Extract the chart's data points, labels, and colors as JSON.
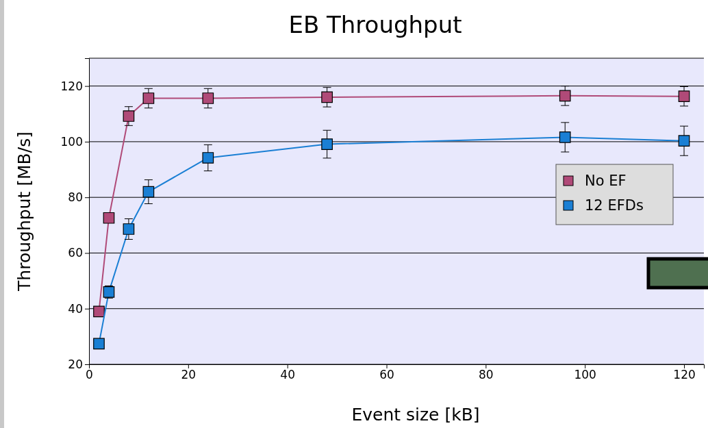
{
  "chart_data": {
    "type": "line",
    "title": "EB Throughput",
    "xlabel": "Event size [kB]",
    "ylabel": "Throughput [MB/s]",
    "xlim": [
      0,
      124
    ],
    "xticks": [
      0,
      20,
      40,
      60,
      80,
      100,
      120
    ],
    "ylim": [
      20,
      130
    ],
    "yticks": [
      20,
      40,
      60,
      80,
      100,
      120
    ],
    "grid": "y",
    "legend": "right",
    "marker": "square",
    "line_style": "solid",
    "series": [
      {
        "name": "No EF",
        "color": "#b04a78",
        "x": [
          2,
          4,
          8,
          12,
          24,
          48,
          96,
          120
        ],
        "values": [
          39,
          72.6,
          109.2,
          115.6,
          115.6,
          116,
          116.5,
          116.3
        ],
        "errors": [
          null,
          1.5,
          3.4,
          3.5,
          3.5,
          3.5,
          3.5,
          3.5
        ]
      },
      {
        "name": "12 EFDs",
        "color": "#1a7fd4",
        "x": [
          2,
          4,
          8,
          12,
          24,
          48,
          96,
          120
        ],
        "values": [
          27.4,
          46,
          68.6,
          82,
          94.2,
          99.1,
          101.6,
          100.3
        ],
        "errors": [
          null,
          2.2,
          3.7,
          4.3,
          4.7,
          5,
          5.3,
          5.3
        ]
      }
    ]
  }
}
